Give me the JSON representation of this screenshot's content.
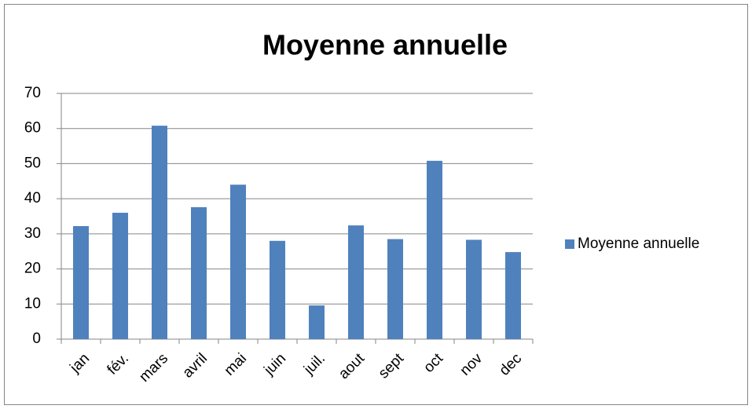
{
  "chart_data": {
    "type": "bar",
    "title": "Moyenne annuelle",
    "categories": [
      "jan",
      "fév.",
      "mars",
      "avril",
      "mai",
      "juin",
      "juil.",
      "aout",
      "sept",
      "oct",
      "nov",
      "dec"
    ],
    "series": [
      {
        "name": "Moyenne annuelle",
        "color": "#4f81bd",
        "values": [
          32.2,
          36,
          60.8,
          37.6,
          44,
          28,
          9.6,
          32.4,
          28.5,
          50.8,
          28.3,
          24.8
        ]
      }
    ],
    "ylim": [
      0,
      70
    ],
    "yticks": [
      0,
      10,
      20,
      30,
      40,
      50,
      60,
      70
    ],
    "grid": true,
    "legend": "right"
  }
}
